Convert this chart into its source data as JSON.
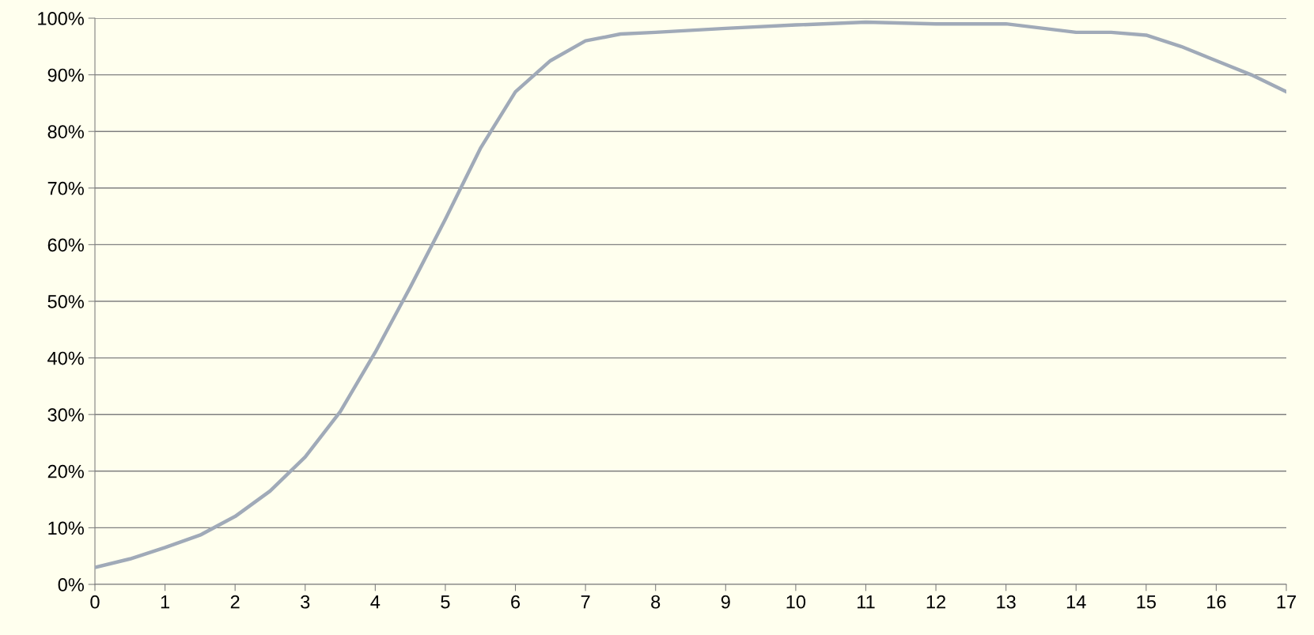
{
  "chart_data": {
    "type": "line",
    "x": [
      0,
      0.5,
      1,
      1.5,
      2,
      2.5,
      3,
      3.5,
      4,
      4.5,
      5,
      5.5,
      6,
      6.5,
      7,
      7.5,
      8,
      9,
      10,
      11,
      12,
      13,
      14,
      14.5,
      15,
      15.5,
      16,
      16.5,
      17
    ],
    "series": [
      {
        "color": "#a0aab8",
        "values": [
          3,
          4.5,
          6.5,
          8.7,
          12,
          16.5,
          22.5,
          30.5,
          41,
          52.5,
          64.5,
          77,
          87,
          92.5,
          96,
          97.2,
          97.5,
          98.2,
          98.8,
          99.3,
          99,
          99,
          97.5,
          97.5,
          97,
          95,
          92.5,
          90,
          87
        ]
      }
    ],
    "xlim": [
      0,
      17
    ],
    "xticks": [
      0,
      1,
      2,
      3,
      4,
      5,
      6,
      7,
      8,
      9,
      10,
      11,
      12,
      13,
      14,
      15,
      16,
      17
    ],
    "ylim": [
      0,
      100
    ],
    "yticks": [
      {
        "value": 0,
        "label": "0%"
      },
      {
        "value": 10,
        "label": "10%"
      },
      {
        "value": 20,
        "label": "20%"
      },
      {
        "value": 30,
        "label": "30%"
      },
      {
        "value": 40,
        "label": "40%"
      },
      {
        "value": 50,
        "label": "50%"
      },
      {
        "value": 60,
        "label": "60%"
      },
      {
        "value": 70,
        "label": "70%"
      },
      {
        "value": 80,
        "label": "80%"
      },
      {
        "value": 90,
        "label": "90%"
      },
      {
        "value": 100,
        "label": "100%"
      }
    ],
    "grid": "y",
    "marker": "none",
    "line_style": "solid",
    "legend": false
  }
}
